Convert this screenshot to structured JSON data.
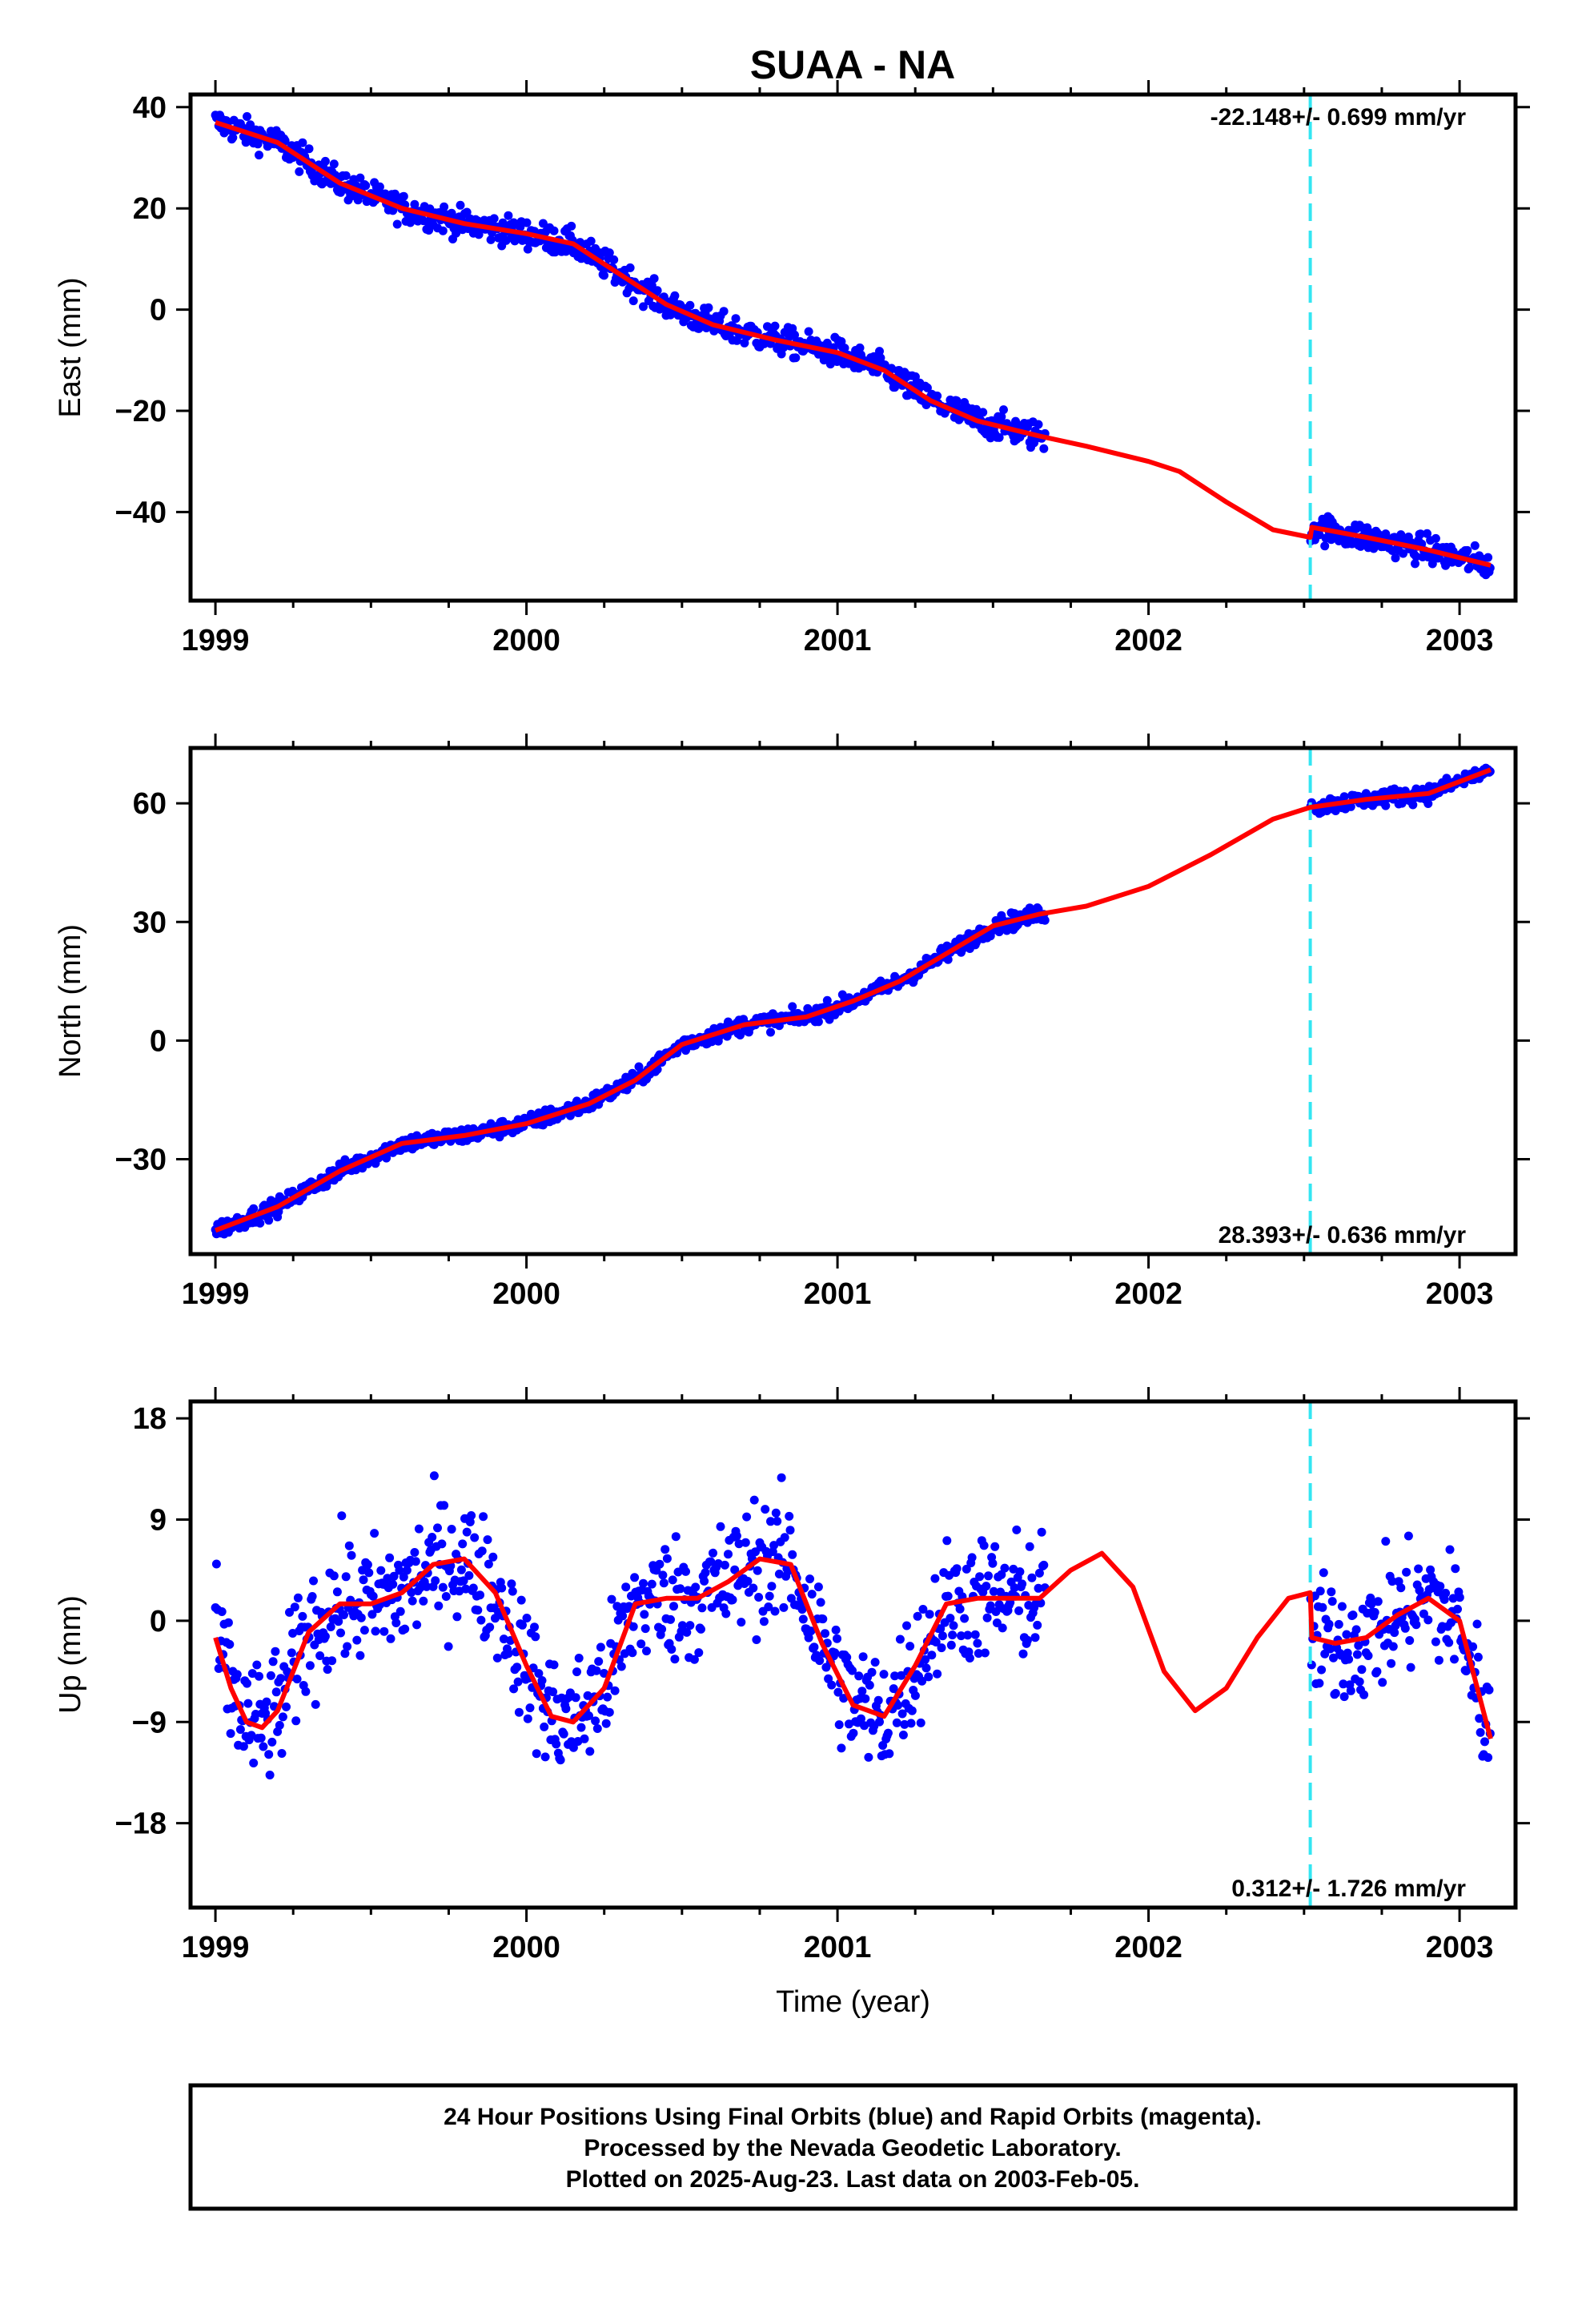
{
  "title": "SUAA - NA",
  "caption": [
    "24 Hour Positions Using Final Orbits (blue) and Rapid Orbits (magenta).",
    "Processed by the Nevada Geodetic Laboratory.",
    "Plotted on 2025-Aug-23. Last data on 2003-Feb-05."
  ],
  "colors": {
    "points": "#0000ff",
    "model": "#ff0000",
    "offset_line": "#33e6f2",
    "frame": "#000000"
  },
  "chart_data": [
    {
      "type": "scatter",
      "name": "east",
      "ylabel": "East (mm)",
      "xlabel": "",
      "xlim": [
        1998.92,
        2003.18
      ],
      "ylim": [
        -57.5,
        42.5
      ],
      "xticks": [
        1999,
        2000,
        2001,
        2002,
        2003
      ],
      "yticks": [
        40,
        20,
        0,
        -20,
        -40
      ],
      "rate_label": "-22.148+/- 0.699 mm/yr",
      "rate_position": "top-right",
      "offset_epoch": 2002.52,
      "gaps": [
        [
          2001.67,
          2002.52
        ]
      ],
      "noise": 2.0,
      "model_x": [
        1999.0,
        1999.2,
        1999.4,
        1999.6,
        1999.8,
        2000.0,
        2000.15,
        2000.3,
        2000.45,
        2000.6,
        2000.8,
        2001.0,
        2001.15,
        2001.3,
        2001.45,
        2001.65,
        2001.8,
        2002.0,
        2002.1,
        2002.25,
        2002.4,
        2002.52,
        2002.525,
        2002.7,
        2002.9,
        2003.1
      ],
      "model_y": [
        37,
        33,
        25,
        20,
        17,
        15,
        13,
        7,
        1,
        -3,
        -6,
        -8.5,
        -12,
        -18,
        -22,
        -25,
        -27,
        -30,
        -32,
        -38,
        -43.5,
        -45,
        -43,
        -45,
        -47.5,
        -50.5
      ]
    },
    {
      "type": "scatter",
      "name": "north",
      "ylabel": "North (mm)",
      "xlabel": "",
      "xlim": [
        1998.92,
        2003.18
      ],
      "ylim": [
        -54,
        74
      ],
      "xticks": [
        1999,
        2000,
        2001,
        2002,
        2003
      ],
      "yticks": [
        60,
        30,
        0,
        -30
      ],
      "rate_label": "28.393+/- 0.636 mm/yr",
      "rate_position": "bottom-right",
      "offset_epoch": 2002.52,
      "gaps": [
        [
          2001.67,
          2002.52
        ]
      ],
      "noise": 1.5,
      "model_x": [
        1999.0,
        1999.2,
        1999.4,
        1999.6,
        1999.8,
        2000.0,
        2000.2,
        2000.35,
        2000.5,
        2000.7,
        2000.9,
        2001.05,
        2001.2,
        2001.35,
        2001.5,
        2001.65,
        2001.8,
        2002.0,
        2002.2,
        2002.4,
        2002.52,
        2002.7,
        2002.9,
        2003.1
      ],
      "model_y": [
        -48,
        -42,
        -33,
        -26,
        -24,
        -21,
        -16,
        -10,
        -1,
        4,
        6,
        10,
        15,
        22,
        29,
        32,
        34,
        39,
        47,
        56,
        59,
        61,
        62.5,
        68.5
      ]
    },
    {
      "type": "scatter",
      "name": "up",
      "ylabel": "Up (mm)",
      "xlabel": "Time (year)",
      "xlim": [
        1998.92,
        2003.18
      ],
      "ylim": [
        -25.5,
        19.5
      ],
      "xticks": [
        1999,
        2000,
        2001,
        2002,
        2003
      ],
      "yticks": [
        18,
        9,
        0,
        -9,
        -18
      ],
      "rate_label": "0.312+/- 1.726 mm/yr",
      "rate_position": "bottom-right",
      "offset_epoch": 2002.52,
      "gaps": [
        [
          2001.67,
          2002.52
        ]
      ],
      "noise": 4.0,
      "model_x": [
        1999.0,
        1999.05,
        1999.1,
        1999.15,
        1999.2,
        1999.3,
        1999.4,
        1999.5,
        1999.6,
        1999.7,
        1999.8,
        1999.9,
        2000.0,
        2000.08,
        2000.15,
        2000.25,
        2000.35,
        2000.45,
        2000.55,
        2000.65,
        2000.75,
        2000.85,
        2000.95,
        2001.05,
        2001.15,
        2001.25,
        2001.35,
        2001.45,
        2001.55,
        2001.65,
        2001.75,
        2001.85,
        2001.95,
        2002.05,
        2002.15,
        2002.25,
        2002.35,
        2002.45,
        2002.52,
        2002.525,
        2002.6,
        2002.7,
        2002.8,
        2002.9,
        2003.0,
        2003.1
      ],
      "model_y": [
        -1.5,
        -6,
        -9,
        -9.5,
        -8,
        -1,
        1.5,
        1.5,
        2.5,
        5,
        5.5,
        2.5,
        -4,
        -8.5,
        -9,
        -6,
        1.5,
        2,
        2,
        3.5,
        5.5,
        5,
        -2,
        -7.5,
        -8.5,
        -4,
        1.5,
        2,
        2,
        2,
        4.5,
        6,
        3,
        -4.5,
        -8,
        -6,
        -1.5,
        2,
        2.5,
        -1.5,
        -2,
        -1.5,
        0.5,
        2,
        0,
        -10.5
      ]
    }
  ]
}
